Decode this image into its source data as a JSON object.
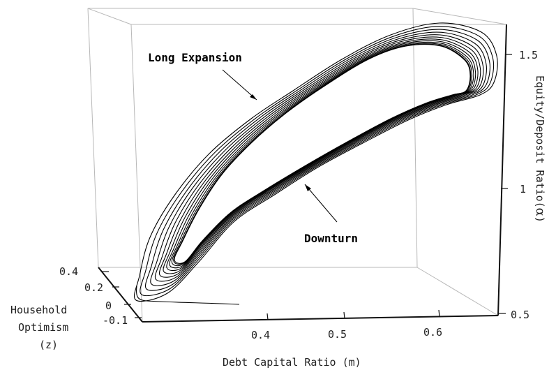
{
  "chart_data": {
    "type": "line",
    "projection": "3d",
    "title": "",
    "axes": {
      "x": {
        "label": "Debt Capital Ratio (m)",
        "ticks": [
          "0.4",
          "0.5",
          "0.6"
        ],
        "range": [
          0.32,
          0.645
        ]
      },
      "y": {
        "label": "Household Optimism (z)",
        "label_lines": [
          "Household",
          "Optimism",
          "(z)"
        ],
        "ticks": [
          "-0.1",
          "0",
          "0.2",
          "0.4"
        ],
        "range": [
          -0.15,
          0.42
        ]
      },
      "z": {
        "label": "Equity/Deposit Ratio(",
        "label_symbol": "α",
        "label_end": ")",
        "ticks": [
          "0.5",
          "1",
          "1.5"
        ],
        "range": [
          0.47,
          1.6
        ]
      }
    },
    "grid": false,
    "box": true,
    "series": [
      {
        "description_source": "trajectory spiralling from the initial point onto a limit cycle",
        "transient": [
          {
            "m": 0.41,
            "z": -0.08,
            "alpha": 0.52
          },
          {
            "m": 0.37,
            "z": -0.08,
            "alpha": 0.52
          },
          {
            "m": 0.33,
            "z": -0.08,
            "alpha": 0.53
          }
        ],
        "limit_cycle_upper_branch": [
          {
            "m": 0.38,
            "alpha": 0.62
          },
          {
            "m": 0.42,
            "alpha": 0.95
          },
          {
            "m": 0.47,
            "alpha": 1.2
          },
          {
            "m": 0.53,
            "alpha": 1.4
          },
          {
            "m": 0.58,
            "alpha": 1.52
          },
          {
            "m": 0.62,
            "alpha": 1.5
          }
        ],
        "limit_cycle_lower_branch": [
          {
            "m": 0.62,
            "alpha": 1.35
          },
          {
            "m": 0.56,
            "alpha": 1.2
          },
          {
            "m": 0.5,
            "alpha": 1.02
          },
          {
            "m": 0.44,
            "alpha": 0.82
          },
          {
            "m": 0.39,
            "alpha": 0.65
          }
        ]
      }
    ],
    "annotations": [
      {
        "text": "Long Expansion"
      },
      {
        "text": "Downturn"
      }
    ]
  }
}
